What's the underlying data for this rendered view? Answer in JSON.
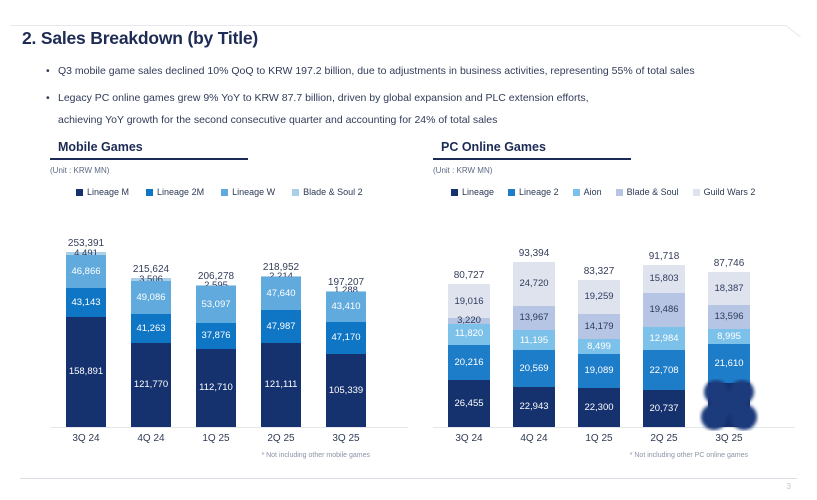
{
  "slide": {
    "title": "2. Sales Breakdown (by Title)",
    "bullets": [
      [
        "Q3 mobile game sales declined 10% QoQ to KRW 197.2 billion, due to adjustments in business activities, representing 55% of total sales"
      ],
      [
        "Legacy PC online games grew 9% YoY to KRW 87.7 billion, driven by global expansion and PLC extension efforts,",
        "achieving YoY growth for the second consecutive quarter and accounting for 24% of total sales"
      ]
    ],
    "page_number": "3"
  },
  "chart_data": [
    {
      "type": "bar",
      "stacked": true,
      "title": "Mobile Games",
      "unit_label": "(Unit : KRW MN)",
      "footnote": "* Not including other mobile games",
      "legend_position": "top",
      "grid": false,
      "categories": [
        "3Q 24",
        "4Q 24",
        "1Q 25",
        "2Q 25",
        "3Q 25"
      ],
      "totals": [
        253391,
        215624,
        206278,
        218952,
        197207
      ],
      "series": [
        {
          "name": "Lineage M",
          "color": "#15316e",
          "label_color": "#ffffff",
          "values": [
            158891,
            121770,
            112710,
            121111,
            105339
          ]
        },
        {
          "name": "Lineage 2M",
          "color": "#0f75c5",
          "label_color": "#ffffff",
          "values": [
            43143,
            41263,
            37876,
            47987,
            47170
          ]
        },
        {
          "name": "Lineage W",
          "color": "#61aadd",
          "label_color": "#ffffff",
          "values": [
            46866,
            49086,
            53097,
            47640,
            43410
          ]
        },
        {
          "name": "Blade & Soul 2",
          "color": "#a9cfe9",
          "label_color": "#2e3b5c",
          "values": [
            4491,
            3506,
            2595,
            2214,
            1288
          ]
        }
      ]
    },
    {
      "type": "bar",
      "stacked": true,
      "title": "PC Online Games",
      "unit_label": "(Unit : KRW MN)",
      "footnote": "* Not including other PC online games",
      "legend_position": "top",
      "grid": false,
      "categories": [
        "3Q 24",
        "4Q 24",
        "1Q 25",
        "2Q 25",
        "3Q 25"
      ],
      "totals": [
        80727,
        93394,
        83327,
        91718,
        87746
      ],
      "series": [
        {
          "name": "Lineage",
          "color": "#15316e",
          "label_color": "#ffffff",
          "values": [
            26455,
            22943,
            22300,
            20737,
            null
          ],
          "obscured_note": "3Q 25 value hidden by dark smudge"
        },
        {
          "name": "Lineage 2",
          "color": "#1e7dc9",
          "label_color": "#ffffff",
          "values": [
            20216,
            20569,
            19089,
            22708,
            21610
          ]
        },
        {
          "name": "Aion",
          "color": "#7cc1e9",
          "label_color": "#ffffff",
          "values": [
            11820,
            11195,
            8499,
            12984,
            8995
          ]
        },
        {
          "name": "Blade & Soul",
          "color": "#b6c5e3",
          "label_color": "#2e3b5c",
          "values": [
            3220,
            13967,
            14179,
            19486,
            13596
          ]
        },
        {
          "name": "Guild Wars 2",
          "color": "#dfe3ee",
          "label_color": "#2e3b5c",
          "values": [
            19016,
            24720,
            19259,
            15803,
            18387
          ]
        }
      ]
    }
  ],
  "colors": {
    "title_navy": "#1e2c55",
    "redaction_blob": "#1d3a7c",
    "rule_gray": "#d8dce3"
  }
}
